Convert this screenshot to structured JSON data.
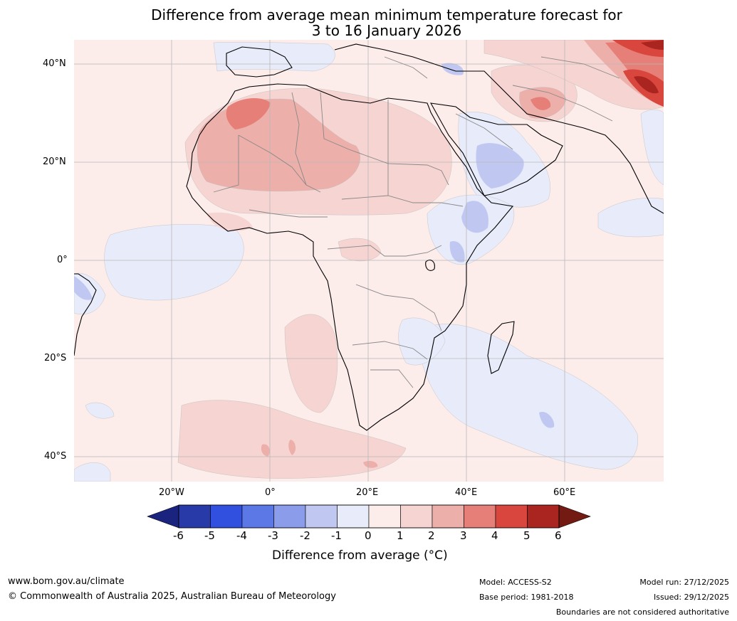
{
  "title": {
    "line1": "Difference from average mean minimum temperature forecast for",
    "line2": "3 to 16 January 2026"
  },
  "lat_labels": [
    "40°N",
    "20°N",
    "0°",
    "20°S",
    "40°S"
  ],
  "lon_labels": [
    "20°W",
    "0°",
    "20°E",
    "40°E",
    "60°E"
  ],
  "colorbar": {
    "ticks": [
      "-6",
      "-5",
      "-4",
      "-3",
      "-2",
      "-1",
      "0",
      "1",
      "2",
      "3",
      "4",
      "5",
      "6"
    ],
    "label": "Difference from average (°C)",
    "colors": [
      "#1a237e",
      "#283aa8",
      "#3150e0",
      "#5c78e6",
      "#8a9cea",
      "#c0c8f2",
      "#e8ebfa",
      "#fcecea",
      "#f6d4d1",
      "#edafaa",
      "#e57f78",
      "#d8463e",
      "#aa2520",
      "#731a12"
    ]
  },
  "footer": {
    "website": "www.bom.gov.au/climate",
    "copyright": "© Commonwealth of Australia 2025, Australian Bureau of Meteorology",
    "model": "Model: ACCESS-S2",
    "base_period": "Base period: 1981-2018",
    "model_run": "Model run: 27/12/2025",
    "issued": "Issued: 29/12/2025",
    "disclaimer": "Boundaries are not considered authoritative"
  }
}
